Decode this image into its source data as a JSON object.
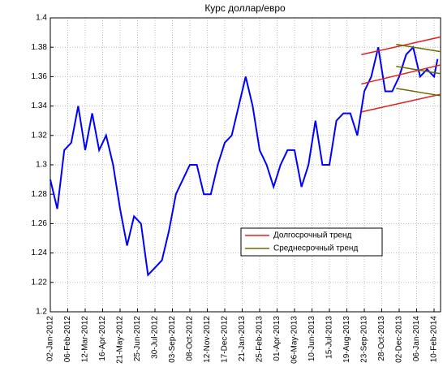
{
  "chart_data": {
    "type": "line",
    "title": "Курс доллар/евро",
    "x": [
      "2012-01-02",
      "2012-01-16",
      "2012-01-30",
      "2012-02-13",
      "2012-02-27",
      "2012-03-12",
      "2012-03-26",
      "2012-04-09",
      "2012-04-23",
      "2012-05-07",
      "2012-05-21",
      "2012-06-04",
      "2012-06-18",
      "2012-07-02",
      "2012-07-16",
      "2012-07-30",
      "2012-08-13",
      "2012-08-27",
      "2012-09-10",
      "2012-09-24",
      "2012-10-08",
      "2012-10-22",
      "2012-11-05",
      "2012-11-19",
      "2012-12-03",
      "2012-12-17",
      "2012-12-31",
      "2013-01-14",
      "2013-01-28",
      "2013-02-11",
      "2013-02-25",
      "2013-03-11",
      "2013-03-25",
      "2013-04-08",
      "2013-04-22",
      "2013-05-06",
      "2013-05-20",
      "2013-06-03",
      "2013-06-17",
      "2013-07-01",
      "2013-07-15",
      "2013-07-29",
      "2013-08-12",
      "2013-08-26",
      "2013-09-09",
      "2013-09-23",
      "2013-10-07",
      "2013-10-21",
      "2013-11-04",
      "2013-11-18",
      "2013-12-02",
      "2013-12-16",
      "2013-12-30",
      "2014-01-13",
      "2014-01-27",
      "2014-02-10",
      "2014-02-17"
    ],
    "series": [
      {
        "color": "#0000ff",
        "values": [
          1.29,
          1.27,
          1.31,
          1.315,
          1.34,
          1.31,
          1.335,
          1.31,
          1.32,
          1.3,
          1.27,
          1.245,
          1.265,
          1.26,
          1.225,
          1.23,
          1.235,
          1.255,
          1.28,
          1.29,
          1.3,
          1.3,
          1.28,
          1.28,
          1.3,
          1.315,
          1.32,
          1.34,
          1.36,
          1.34,
          1.31,
          1.3,
          1.285,
          1.3,
          1.31,
          1.31,
          1.285,
          1.3,
          1.33,
          1.3,
          1.3,
          1.33,
          1.335,
          1.335,
          1.32,
          1.35,
          1.36,
          1.38,
          1.35,
          1.35,
          1.36,
          1.375,
          1.38,
          1.36,
          1.365,
          1.36,
          1.372
        ]
      }
    ],
    "trends": [
      {
        "name": "Долгосрочный тренд",
        "color": "#e02020",
        "lines": [
          {
            "x": [
              "2013-09-17",
              "2014-02-23"
            ],
            "values": [
              1.336,
              1.348
            ]
          },
          {
            "x": [
              "2013-09-17",
              "2014-02-23"
            ],
            "values": [
              1.355,
              1.368
            ]
          },
          {
            "x": [
              "2013-09-17",
              "2014-02-23"
            ],
            "values": [
              1.375,
              1.387
            ]
          }
        ]
      },
      {
        "name": "Среднесрочный тренд",
        "color": "#6b6b00",
        "lines": [
          {
            "x": [
              "2013-11-26",
              "2014-02-23"
            ],
            "values": [
              1.382,
              1.377
            ]
          },
          {
            "x": [
              "2013-11-26",
              "2014-02-23"
            ],
            "values": [
              1.367,
              1.362
            ]
          },
          {
            "x": [
              "2013-11-26",
              "2014-02-23"
            ],
            "values": [
              1.352,
              1.347
            ]
          }
        ]
      }
    ],
    "xlim": [
      "2012-01-02",
      "2014-02-23"
    ],
    "xticks": [
      {
        "value": "2012-01-02",
        "label": "02-Jan-2012"
      },
      {
        "value": "2012-02-06",
        "label": "06-Feb-2012"
      },
      {
        "value": "2012-03-12",
        "label": "12-Mar-2012"
      },
      {
        "value": "2012-04-16",
        "label": "16-Apr-2012"
      },
      {
        "value": "2012-05-21",
        "label": "21-May-2012"
      },
      {
        "value": "2012-06-25",
        "label": "25-Jun-2012"
      },
      {
        "value": "2012-07-30",
        "label": "30-Jul-2012"
      },
      {
        "value": "2012-09-03",
        "label": "03-Sep-2012"
      },
      {
        "value": "2012-10-08",
        "label": "08-Oct-2012"
      },
      {
        "value": "2012-11-12",
        "label": "12-Nov-2012"
      },
      {
        "value": "2012-12-17",
        "label": "17-Dec-2012"
      },
      {
        "value": "2013-01-21",
        "label": "21-Jan-2013"
      },
      {
        "value": "2013-02-25",
        "label": "25-Feb-2013"
      },
      {
        "value": "2013-04-01",
        "label": "01-Apr-2013"
      },
      {
        "value": "2013-05-06",
        "label": "06-May-2013"
      },
      {
        "value": "2013-06-10",
        "label": "10-Jun-2013"
      },
      {
        "value": "2013-07-15",
        "label": "15-Jul-2013"
      },
      {
        "value": "2013-08-19",
        "label": "19-Aug-2013"
      },
      {
        "value": "2013-09-23",
        "label": "23-Sep-2013"
      },
      {
        "value": "2013-10-28",
        "label": "28-Oct-2013"
      },
      {
        "value": "2013-12-02",
        "label": "02-Dec-2013"
      },
      {
        "value": "2014-01-06",
        "label": "06-Jan-2014"
      },
      {
        "value": "2014-02-10",
        "label": "10-Feb-2014"
      }
    ],
    "ylim": [
      1.2,
      1.4
    ],
    "yticks": [
      1.2,
      1.22,
      1.24,
      1.26,
      1.28,
      1.3,
      1.32,
      1.34,
      1.36,
      1.38,
      1.4
    ],
    "grid": true
  }
}
